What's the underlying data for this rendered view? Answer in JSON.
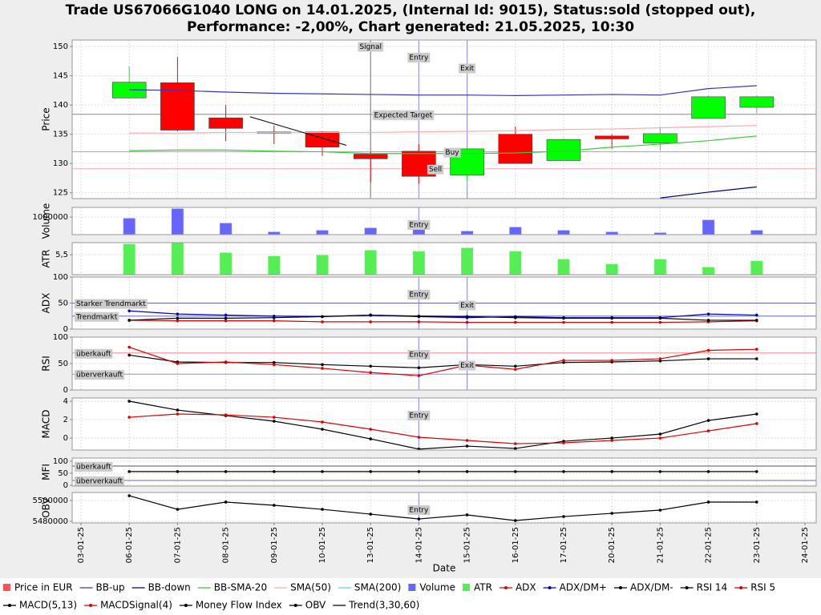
{
  "title": [
    "Trade US67066G1040 LONG on 14.01.2025, (Internal Id: 9015), Status:sold (stopped out),",
    "Performance: -2,00%, Chart generated: 21.05.2025, 10:30"
  ],
  "x_label": "Date",
  "dates": [
    "03-01-25",
    "06-01-25",
    "07-01-25",
    "08-01-25",
    "09-01-25",
    "10-01-25",
    "13-01-25",
    "14-01-25",
    "15-01-25",
    "16-01-25",
    "17-01-25",
    "20-01-25",
    "21-01-25",
    "22-01-25",
    "23-01-25",
    "24-01-25"
  ],
  "grid": true,
  "legend": [
    {
      "name": "Price in EUR",
      "color": "#ff5555",
      "symbol": "rect"
    },
    {
      "name": "BB-up",
      "color": "#3333cc",
      "symbol": "line"
    },
    {
      "name": "BB-down",
      "color": "#000080",
      "symbol": "line"
    },
    {
      "name": "BB-SMA-20",
      "color": "#33cc33",
      "symbol": "line"
    },
    {
      "name": "SMA(50)",
      "color": "#ffaaaa",
      "symbol": "line"
    },
    {
      "name": "SMA(200)",
      "color": "#66ccff",
      "symbol": "line"
    },
    {
      "name": "Volume",
      "color": "#6666ff",
      "symbol": "rect"
    },
    {
      "name": "ATR",
      "color": "#55ee55",
      "symbol": "rect"
    },
    {
      "name": "ADX",
      "color": "#dd0000",
      "symbol": "dotline"
    },
    {
      "name": "ADX/DM+",
      "color": "#0000cc",
      "symbol": "dotline"
    },
    {
      "name": "ADX/DM-",
      "color": "#000000",
      "symbol": "dotline"
    },
    {
      "name": "RSI 14",
      "color": "#000000",
      "symbol": "dotline"
    },
    {
      "name": "RSI 5",
      "color": "#dd0000",
      "symbol": "dotline"
    },
    {
      "name": "MACD(5,13)",
      "color": "#000000",
      "symbol": "dotline"
    },
    {
      "name": "MACDSignal(4)",
      "color": "#dd0000",
      "symbol": "dotline"
    },
    {
      "name": "Money Flow Index",
      "color": "#000000",
      "symbol": "dotline"
    },
    {
      "name": "OBV",
      "color": "#000000",
      "symbol": "dotline"
    },
    {
      "name": "Trend(3,30,60)",
      "color": "#000000",
      "symbol": "line"
    }
  ],
  "chart_data": [
    {
      "type": "candlestick",
      "ylabel": "Price",
      "ylim": [
        124,
        151.1
      ],
      "yticks": [
        125,
        130,
        135,
        140,
        145,
        150
      ],
      "up_color": "#00ff00",
      "down_color": "#ff0000",
      "candles": {
        "open": [
          null,
          141.2,
          143.8,
          137.8,
          135.4,
          135.4,
          131.6,
          132.1,
          128.0,
          135.0,
          130.5,
          134.7,
          133.5,
          137.7,
          139.6,
          null
        ],
        "high": [
          null,
          146.6,
          148.2,
          140.0,
          136.5,
          135.5,
          132.0,
          133.3,
          132.5,
          136.3,
          134.3,
          135.0,
          136.3,
          141.6,
          141.6,
          null
        ],
        "low": [
          null,
          141.2,
          135.5,
          133.8,
          133.3,
          131.3,
          126.8,
          126.5,
          127.1,
          130.0,
          130.5,
          132.5,
          132.2,
          137.7,
          138.6,
          null
        ],
        "close": [
          null,
          143.9,
          135.7,
          136.0,
          135.2,
          132.8,
          130.8,
          127.8,
          132.5,
          130.0,
          134.1,
          134.2,
          135.1,
          141.4,
          141.4,
          null
        ]
      },
      "series": [
        {
          "color": "#3333cc",
          "values": [
            null,
            142.6,
            142.5,
            142.2,
            142.0,
            141.9,
            141.8,
            141.7,
            141.7,
            141.6,
            141.7,
            141.8,
            141.7,
            142.8,
            143.3,
            null
          ]
        },
        {
          "color": "#000080",
          "values": [
            null,
            null,
            null,
            null,
            null,
            null,
            null,
            null,
            null,
            null,
            null,
            null,
            124.1,
            125.1,
            126.0,
            null
          ]
        },
        {
          "color": "#33cc33",
          "values": [
            null,
            132.2,
            132.3,
            132.3,
            132.1,
            132.0,
            131.7,
            131.7,
            131.7,
            131.8,
            132.1,
            132.8,
            133.3,
            133.9,
            134.7,
            null
          ]
        },
        {
          "color": "#ffaaaa",
          "values": [
            null,
            135.2,
            135.2,
            135.3,
            135.3,
            135.3,
            135.3,
            135.4,
            135.5,
            135.6,
            135.8,
            135.9,
            136.1,
            136.3,
            136.5,
            null
          ]
        }
      ],
      "trend": {
        "color": "#000000",
        "x": [
          3.5,
          5.5
        ],
        "y": [
          138.0,
          133.1
        ]
      },
      "hlines": [
        {
          "label": "Expected Target",
          "value": 138.4,
          "color": "#888888"
        },
        {
          "label": "Buy",
          "value": 132.0,
          "color": "#66dd66"
        },
        {
          "label": "Sell",
          "value": 129.1,
          "color": "#ffaaaa"
        }
      ],
      "markers": [
        {
          "label": "Signal",
          "x": "13-01-25",
          "color": "#888888"
        },
        {
          "label": "Entry",
          "x": "14-01-25",
          "color": "#9999ff"
        },
        {
          "label": "Exit",
          "x": "15-01-25",
          "color": "#9999ff"
        }
      ]
    },
    {
      "type": "bar",
      "ylabel": "Volume",
      "ylim": [
        0,
        1545000
      ],
      "yticks": [
        1000000
      ],
      "series": [
        {
          "color": "#6666ff",
          "values": [
            null,
            910000,
            1455000,
            636000,
            136000,
            227000,
            364000,
            409000,
            182000,
            409000,
            227000,
            136000,
            91000,
            818000,
            227000,
            null
          ]
        }
      ],
      "markers": [
        {
          "label": "Entry",
          "x": "14-01-25",
          "color": "#9999ff"
        }
      ]
    },
    {
      "type": "bar",
      "ylabel": "ATR",
      "ylim": [
        4.67,
        6.0
      ],
      "yticks": [
        {
          "value": 5.5,
          "label": "5,5"
        }
      ],
      "series": [
        {
          "color": "#55ee55",
          "values": [
            null,
            5.93,
            6.0,
            5.57,
            5.43,
            5.47,
            5.67,
            5.63,
            5.77,
            5.63,
            5.3,
            5.1,
            5.3,
            4.97,
            5.23,
            null
          ]
        }
      ]
    },
    {
      "type": "line",
      "ylabel": "ADX",
      "ylim": [
        0,
        100
      ],
      "yticks": [
        0,
        50,
        100
      ],
      "series": [
        {
          "color": "#dd0000",
          "dots": true,
          "values": [
            null,
            17,
            16,
            16,
            16,
            14,
            14,
            14,
            13,
            13,
            13,
            13,
            13,
            14,
            16,
            null
          ]
        },
        {
          "color": "#0000cc",
          "dots": true,
          "values": [
            null,
            35,
            29,
            27,
            25,
            24,
            27,
            24,
            22,
            24,
            22,
            22,
            22,
            29,
            27,
            null
          ]
        },
        {
          "color": "#000000",
          "dots": true,
          "values": [
            null,
            17,
            21,
            21,
            22,
            24,
            27,
            25,
            24,
            22,
            21,
            21,
            21,
            17,
            17,
            null
          ]
        }
      ],
      "hlines": [
        {
          "label": "Starker Trendmarkt",
          "value": 50,
          "color": "#6666cc"
        },
        {
          "label": "Trendmarkt",
          "value": 25,
          "color": "#6666cc"
        }
      ],
      "markers": [
        {
          "label": "Entry",
          "x": "14-01-25",
          "color": "#9999ff"
        },
        {
          "label": "Exit",
          "x": "15-01-25",
          "color": "#9999ff"
        }
      ]
    },
    {
      "type": "line",
      "ylabel": "RSI",
      "ylim": [
        0,
        100
      ],
      "yticks": [
        0,
        50,
        100
      ],
      "series": [
        {
          "color": "#000000",
          "dots": true,
          "values": [
            null,
            66,
            53,
            52,
            52,
            48,
            45,
            42,
            48,
            45,
            52,
            53,
            55,
            59,
            59,
            null
          ]
        },
        {
          "color": "#dd0000",
          "dots": true,
          "values": [
            null,
            81,
            50,
            53,
            48,
            41,
            33,
            27,
            47,
            39,
            56,
            56,
            59,
            75,
            77,
            null
          ]
        }
      ],
      "hlines": [
        {
          "label": "überkauft",
          "value": 70,
          "color": "#ff8888"
        },
        {
          "label": "überverkauft",
          "value": 30,
          "color": "#8888ff"
        }
      ],
      "markers": [
        {
          "label": "Entry",
          "x": "14-01-25",
          "color": "#9999ff"
        },
        {
          "label": "Exit",
          "x": "15-01-25",
          "color": "#9999ff"
        }
      ]
    },
    {
      "type": "line",
      "ylabel": "MACD",
      "ylim": [
        -1.3,
        4.35
      ],
      "yticks": [
        0,
        2,
        4
      ],
      "series": [
        {
          "color": "#000000",
          "dots": true,
          "values": [
            null,
            4.0,
            3.04,
            2.43,
            1.83,
            0.96,
            -0.09,
            -1.2,
            -0.87,
            -1.13,
            -0.35,
            0.0,
            0.43,
            1.91,
            2.61,
            null
          ]
        },
        {
          "color": "#dd0000",
          "dots": true,
          "values": [
            null,
            2.26,
            2.61,
            2.52,
            2.26,
            1.74,
            0.96,
            0.09,
            -0.26,
            -0.61,
            -0.52,
            -0.26,
            0.0,
            0.78,
            1.57,
            null
          ]
        }
      ],
      "markers": [
        {
          "label": "Entry",
          "x": "14-01-25",
          "color": "#9999ff"
        }
      ]
    },
    {
      "type": "line",
      "ylabel": "MFI",
      "ylim": [
        -3,
        113
      ],
      "yticks": [
        0,
        50,
        100
      ],
      "series": [
        {
          "color": "#000000",
          "dots": true,
          "values": [
            null,
            57,
            57,
            57,
            57,
            57,
            57,
            57,
            57,
            57,
            57,
            57,
            57,
            57,
            57,
            null
          ]
        }
      ],
      "hlines": [
        {
          "label": "überkauft",
          "value": 80,
          "color": "#555555"
        },
        {
          "label": "überverkauft",
          "value": 20,
          "color": "#6666cc"
        }
      ]
    },
    {
      "type": "line",
      "ylabel": "OBV",
      "ylim": [
        5478500,
        5507700
      ],
      "yticks": [
        5480000,
        5500000
      ],
      "series": [
        {
          "color": "#000000",
          "dots": true,
          "values": [
            null,
            5504600,
            5491500,
            5498500,
            5495400,
            5491500,
            5486900,
            5482300,
            5486200,
            5480800,
            5484600,
            5487700,
            5490800,
            5498500,
            5498500,
            null
          ]
        }
      ],
      "markers": [
        {
          "label": "Entry",
          "x": "14-01-25",
          "color": "#9999ff"
        }
      ]
    }
  ]
}
